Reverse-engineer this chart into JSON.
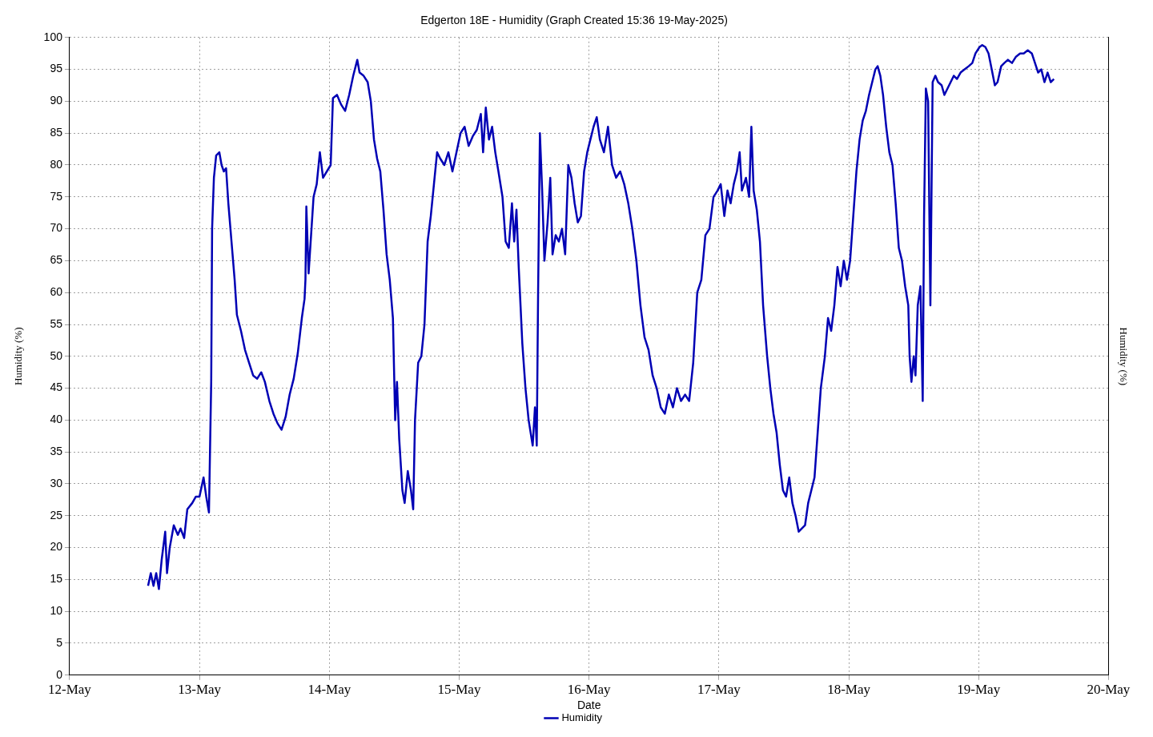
{
  "chart_data": {
    "type": "line",
    "title": "Edgerton 18E - Humidity (Graph Created 15:36 19-May-2025)",
    "xlabel": "Date",
    "ylabel": "Humidity (%)",
    "y2label": "Humidity (%)",
    "x": [
      "2025-05-12T14:30",
      "2025-05-12T15:00",
      "2025-05-12T15:30",
      "2025-05-12T16:00",
      "2025-05-12T16:30",
      "2025-05-12T17:00",
      "2025-05-12T17:40",
      "2025-05-12T18:00",
      "2025-05-12T18:30",
      "2025-05-12T19:15",
      "2025-05-12T20:00",
      "2025-05-12T20:30",
      "2025-05-12T21:10",
      "2025-05-12T21:45",
      "2025-05-12T22:40",
      "2025-05-12T23:20",
      "2025-05-13T00:00",
      "2025-05-13T00:45",
      "2025-05-13T01:15",
      "2025-05-13T01:45",
      "2025-05-13T02:10",
      "2025-05-13T02:20",
      "2025-05-13T02:40",
      "2025-05-13T03:05",
      "2025-05-13T03:40",
      "2025-05-13T04:05",
      "2025-05-13T04:30",
      "2025-05-13T04:55",
      "2025-05-13T05:20",
      "2025-05-13T05:55",
      "2025-05-13T06:30",
      "2025-05-13T06:55",
      "2025-05-13T07:40",
      "2025-05-13T08:25",
      "2025-05-13T09:10",
      "2025-05-13T09:55",
      "2025-05-13T10:40",
      "2025-05-13T11:25",
      "2025-05-13T12:05",
      "2025-05-13T12:55",
      "2025-05-13T13:40",
      "2025-05-13T14:25",
      "2025-05-13T15:10",
      "2025-05-13T15:55",
      "2025-05-13T16:40",
      "2025-05-13T17:25",
      "2025-05-13T18:10",
      "2025-05-13T18:55",
      "2025-05-13T19:25",
      "2025-05-13T19:35",
      "2025-05-13T19:45",
      "2025-05-13T20:10",
      "2025-05-13T21:05",
      "2025-05-13T21:40",
      "2025-05-13T22:15",
      "2025-05-13T22:50",
      "2025-05-14T00:15",
      "2025-05-14T00:40",
      "2025-05-14T01:25",
      "2025-05-14T02:10",
      "2025-05-14T02:55",
      "2025-05-14T03:40",
      "2025-05-14T04:25",
      "2025-05-14T05:10",
      "2025-05-14T05:35",
      "2025-05-14T06:20",
      "2025-05-14T07:05",
      "2025-05-14T07:40",
      "2025-05-14T08:15",
      "2025-05-14T08:50",
      "2025-05-14T09:25",
      "2025-05-14T10:00",
      "2025-05-14T10:35",
      "2025-05-14T11:10",
      "2025-05-14T11:45",
      "2025-05-14T12:10",
      "2025-05-14T12:30",
      "2025-05-14T12:55",
      "2025-05-14T13:30",
      "2025-05-14T13:55",
      "2025-05-14T14:30",
      "2025-05-14T15:05",
      "2025-05-14T15:30",
      "2025-05-14T15:50",
      "2025-05-14T16:25",
      "2025-05-14T17:00",
      "2025-05-14T17:35",
      "2025-05-14T18:10",
      "2025-05-14T18:45",
      "2025-05-14T19:20",
      "2025-05-14T19:55",
      "2025-05-14T20:30",
      "2025-05-14T21:15",
      "2025-05-14T22:00",
      "2025-05-14T22:45",
      "2025-05-14T23:30",
      "2025-05-15T00:15",
      "2025-05-15T01:00",
      "2025-05-15T01:45",
      "2025-05-15T02:30",
      "2025-05-15T03:15",
      "2025-05-15T04:00",
      "2025-05-15T04:25",
      "2025-05-15T04:55",
      "2025-05-15T05:30",
      "2025-05-15T06:05",
      "2025-05-15T06:40",
      "2025-05-15T07:15",
      "2025-05-15T08:00",
      "2025-05-15T08:35",
      "2025-05-15T09:10",
      "2025-05-15T09:45",
      "2025-05-15T10:10",
      "2025-05-15T10:35",
      "2025-05-15T11:00",
      "2025-05-15T11:40",
      "2025-05-15T12:15",
      "2025-05-15T12:50",
      "2025-05-15T13:35",
      "2025-05-15T14:00",
      "2025-05-15T14:20",
      "2025-05-15T14:35",
      "2025-05-15T14:55",
      "2025-05-15T15:20",
      "2025-05-15T15:45",
      "2025-05-15T16:20",
      "2025-05-15T16:50",
      "2025-05-15T17:15",
      "2025-05-15T17:50",
      "2025-05-15T18:25",
      "2025-05-15T19:00",
      "2025-05-15T19:35",
      "2025-05-15T20:10",
      "2025-05-15T20:45",
      "2025-05-15T21:20",
      "2025-05-15T21:55",
      "2025-05-15T22:30",
      "2025-05-15T23:05",
      "2025-05-15T23:40",
      "2025-05-16T00:15",
      "2025-05-16T00:50",
      "2025-05-16T01:25",
      "2025-05-16T02:00",
      "2025-05-16T02:45",
      "2025-05-16T03:30",
      "2025-05-16T04:15",
      "2025-05-16T05:00",
      "2025-05-16T05:45",
      "2025-05-16T06:30",
      "2025-05-16T07:15",
      "2025-05-16T08:00",
      "2025-05-16T08:45",
      "2025-05-16T09:30",
      "2025-05-16T10:15",
      "2025-05-16T11:00",
      "2025-05-16T11:45",
      "2025-05-16T12:30",
      "2025-05-16T13:15",
      "2025-05-16T14:00",
      "2025-05-16T14:45",
      "2025-05-16T15:30",
      "2025-05-16T16:15",
      "2025-05-16T17:00",
      "2025-05-16T17:45",
      "2025-05-16T18:30",
      "2025-05-16T19:15",
      "2025-05-16T20:00",
      "2025-05-16T20:45",
      "2025-05-16T21:30",
      "2025-05-16T22:15",
      "2025-05-16T23:00",
      "2025-05-16T23:45",
      "2025-05-17T00:20",
      "2025-05-17T01:00",
      "2025-05-17T01:35",
      "2025-05-17T02:10",
      "2025-05-17T02:45",
      "2025-05-17T03:20",
      "2025-05-17T03:50",
      "2025-05-17T04:15",
      "2025-05-17T05:00",
      "2025-05-17T05:35",
      "2025-05-17T06:00",
      "2025-05-17T06:25",
      "2025-05-17T07:00",
      "2025-05-17T07:35",
      "2025-05-17T08:10",
      "2025-05-17T08:55",
      "2025-05-17T09:30",
      "2025-05-17T10:05",
      "2025-05-17T10:40",
      "2025-05-17T11:15",
      "2025-05-17T11:50",
      "2025-05-17T12:25",
      "2025-05-17T13:00",
      "2025-05-17T13:35",
      "2025-05-17T14:10",
      "2025-05-17T14:45",
      "2025-05-17T15:20",
      "2025-05-17T15:55",
      "2025-05-17T16:30",
      "2025-05-17T17:05",
      "2025-05-17T17:40",
      "2025-05-17T18:15",
      "2025-05-17T18:50",
      "2025-05-17T19:35",
      "2025-05-17T20:10",
      "2025-05-17T20:45",
      "2025-05-17T21:20",
      "2025-05-17T21:55",
      "2025-05-17T22:30",
      "2025-05-17T23:05",
      "2025-05-17T23:40",
      "2025-05-18T00:15",
      "2025-05-18T00:50",
      "2025-05-18T01:25",
      "2025-05-18T02:00",
      "2025-05-18T02:35",
      "2025-05-18T03:10",
      "2025-05-18T03:45",
      "2025-05-18T04:20",
      "2025-05-18T04:55",
      "2025-05-18T05:20",
      "2025-05-18T05:50",
      "2025-05-18T06:20",
      "2025-05-18T06:55",
      "2025-05-18T07:30",
      "2025-05-18T08:05",
      "2025-05-18T08:40",
      "2025-05-18T09:15",
      "2025-05-18T09:50",
      "2025-05-18T10:25",
      "2025-05-18T11:00",
      "2025-05-18T11:15",
      "2025-05-18T11:35",
      "2025-05-18T12:00",
      "2025-05-18T12:20",
      "2025-05-18T12:45",
      "2025-05-18T13:15",
      "2025-05-18T13:40",
      "2025-05-18T13:55",
      "2025-05-18T14:15",
      "2025-05-18T14:40",
      "2025-05-18T15:05",
      "2025-05-18T15:30",
      "2025-05-18T16:00",
      "2025-05-18T16:30",
      "2025-05-18T17:10",
      "2025-05-18T17:40",
      "2025-05-18T18:15",
      "2025-05-18T18:50",
      "2025-05-18T19:25",
      "2025-05-18T20:00",
      "2025-05-18T20:40",
      "2025-05-18T21:25",
      "2025-05-18T22:10",
      "2025-05-18T22:50",
      "2025-05-18T23:25",
      "2025-05-19T00:10",
      "2025-05-19T00:40",
      "2025-05-19T01:15",
      "2025-05-19T01:50",
      "2025-05-19T02:25",
      "2025-05-19T03:00",
      "2025-05-19T03:30",
      "2025-05-19T04:10",
      "2025-05-19T04:45",
      "2025-05-19T05:25",
      "2025-05-19T06:10",
      "2025-05-19T06:55",
      "2025-05-19T07:40",
      "2025-05-19T08:20",
      "2025-05-19T09:05",
      "2025-05-19T09:50",
      "2025-05-19T10:25",
      "2025-05-19T11:00",
      "2025-05-19T11:35",
      "2025-05-19T12:10",
      "2025-05-19T12:45",
      "2025-05-19T13:20",
      "2025-05-19T13:55"
    ],
    "series": [
      {
        "name": "Humidity",
        "color": "#0000b4",
        "values": [
          14,
          16,
          14,
          16,
          13.5,
          18,
          22.5,
          16,
          20,
          23.5,
          22,
          23,
          21.5,
          26,
          27,
          28,
          28,
          31,
          28,
          25.5,
          46,
          70,
          78,
          81.5,
          82,
          80,
          79,
          79.5,
          74,
          68,
          62,
          56.5,
          54,
          51,
          49,
          47,
          46.5,
          47.5,
          46,
          43,
          41,
          39.5,
          38.5,
          40.5,
          44,
          46.5,
          50.5,
          56,
          59,
          62,
          73.5,
          63,
          75,
          77,
          82,
          78,
          80,
          90.5,
          91,
          89.5,
          88.5,
          91,
          94,
          96.5,
          94.5,
          94,
          93,
          90,
          84,
          81,
          79,
          73,
          66,
          62,
          56,
          40,
          46,
          37,
          29,
          27,
          32,
          29,
          26,
          40,
          49,
          50,
          55,
          68,
          72,
          77,
          82,
          81,
          80,
          82,
          79,
          82,
          85,
          86,
          83,
          84.5,
          85.5,
          88,
          82,
          89,
          84,
          86,
          82,
          79,
          75,
          68,
          67,
          74,
          68,
          73,
          64,
          52,
          45,
          40,
          36,
          42,
          36,
          60,
          85,
          76,
          65,
          71,
          78,
          66,
          69,
          68,
          70,
          66,
          80,
          78,
          74,
          71,
          72,
          79,
          82,
          84,
          86,
          87.5,
          84,
          82,
          86,
          80,
          78,
          79,
          77,
          74,
          70,
          65,
          58,
          53,
          51,
          47,
          45,
          42,
          41,
          44,
          42,
          45,
          43,
          44,
          43,
          49,
          60,
          62,
          69,
          70,
          75,
          76,
          77,
          72,
          76,
          74,
          77,
          79,
          82,
          76,
          78,
          75,
          86,
          76,
          73,
          68,
          58,
          50,
          45,
          41,
          38,
          33,
          29,
          28,
          31,
          27,
          25,
          22.5,
          23,
          23.5,
          27,
          29,
          31,
          38,
          45,
          50,
          56,
          54,
          58,
          64,
          61,
          65,
          62,
          65,
          72,
          79,
          84,
          87,
          88.5,
          91,
          93,
          95,
          95.5,
          94,
          91,
          86,
          82,
          80,
          74,
          67,
          65,
          61,
          58,
          50,
          46,
          50,
          47,
          58,
          61,
          43,
          72,
          92,
          90,
          58,
          93,
          94,
          93,
          92.5,
          91,
          92,
          93,
          94,
          93.5,
          94.5,
          95,
          95.5,
          96,
          97.5,
          98.5,
          98.8,
          98.5,
          97.5,
          95,
          92.5,
          93,
          95.5,
          96,
          96.5,
          96,
          97,
          97.5,
          97.5,
          98,
          97.5,
          96,
          94.5,
          95,
          93,
          94.5,
          93,
          93.5
        ]
      }
    ],
    "xlim": [
      "2025-05-12",
      "2025-05-20"
    ],
    "xticks": [
      {
        "value": "2025-05-12",
        "label": "12-May"
      },
      {
        "value": "2025-05-13",
        "label": "13-May"
      },
      {
        "value": "2025-05-14",
        "label": "14-May"
      },
      {
        "value": "2025-05-15",
        "label": "15-May"
      },
      {
        "value": "2025-05-16",
        "label": "16-May"
      },
      {
        "value": "2025-05-17",
        "label": "17-May"
      },
      {
        "value": "2025-05-18",
        "label": "18-May"
      },
      {
        "value": "2025-05-19",
        "label": "19-May"
      },
      {
        "value": "2025-05-20",
        "label": "20-May"
      }
    ],
    "ylim": [
      0,
      100
    ],
    "yticks": [
      0,
      5,
      10,
      15,
      20,
      25,
      30,
      35,
      40,
      45,
      50,
      55,
      60,
      65,
      70,
      75,
      80,
      85,
      90,
      95,
      100
    ],
    "grid": true,
    "legend": "bottom",
    "marker": "none",
    "line_style": "solid"
  }
}
